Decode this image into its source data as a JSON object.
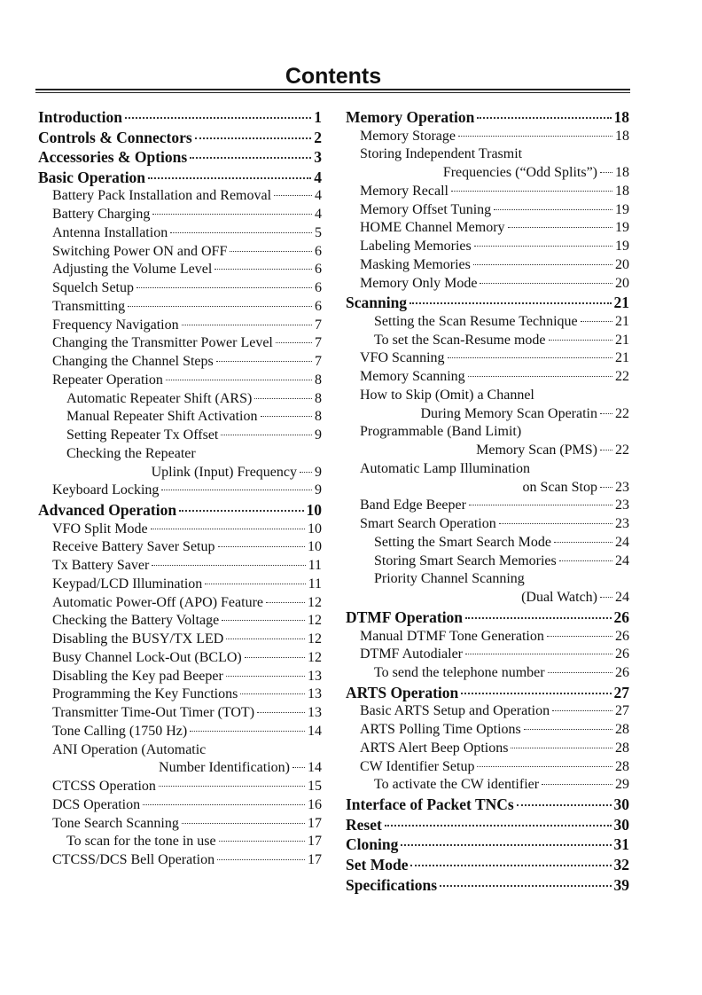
{
  "title": "Contents",
  "left": [
    {
      "text": "Introduction",
      "page": "1",
      "level": 0
    },
    {
      "text": "Controls & Connectors",
      "page": "2",
      "level": 0
    },
    {
      "text": "Accessories & Options",
      "page": "3",
      "level": 0
    },
    {
      "text": "Basic Operation",
      "page": "4",
      "level": 0
    },
    {
      "text": "Battery Pack Installation and Removal",
      "page": "4",
      "level": 1
    },
    {
      "text": "Battery Charging",
      "page": "4",
      "level": 1
    },
    {
      "text": "Antenna Installation",
      "page": "5",
      "level": 1
    },
    {
      "text": "Switching Power ON and OFF",
      "page": "6",
      "level": 1
    },
    {
      "text": "Adjusting the Volume Level",
      "page": "6",
      "level": 1
    },
    {
      "text": "Squelch Setup",
      "page": "6",
      "level": 1
    },
    {
      "text": "Transmitting",
      "page": "6",
      "level": 1
    },
    {
      "text": "Frequency Navigation",
      "page": "7",
      "level": 1
    },
    {
      "text": "Changing the Transmitter Power Level",
      "page": "7",
      "level": 1
    },
    {
      "text": "Changing the Channel Steps",
      "page": "7",
      "level": 1
    },
    {
      "text": "Repeater Operation",
      "page": "8",
      "level": 1
    },
    {
      "text": "Automatic Repeater Shift (ARS)",
      "page": "8",
      "level": 2
    },
    {
      "text": "Manual Repeater Shift Activation",
      "page": "8",
      "level": 2
    },
    {
      "text": "Setting Repeater Tx Offset",
      "page": "9",
      "level": 2
    },
    {
      "text": "Checking the Repeater",
      "cont": "Uplink (Input) Frequency",
      "page": "9",
      "level": 2
    },
    {
      "text": "Keyboard Locking",
      "page": "9",
      "level": 1
    },
    {
      "text": "Advanced Operation",
      "page": "10",
      "level": 0
    },
    {
      "text": "VFO Split Mode",
      "page": "10",
      "level": 1
    },
    {
      "text": "Receive Battery Saver Setup",
      "page": "10",
      "level": 1
    },
    {
      "text": "Tx Battery Saver",
      "page": "11",
      "level": 1
    },
    {
      "text": "Keypad/LCD Illumination",
      "page": "11",
      "level": 1
    },
    {
      "text": "Automatic Power-Off (APO) Feature",
      "page": "12",
      "level": 1
    },
    {
      "text": "Checking the Battery Voltage",
      "page": "12",
      "level": 1
    },
    {
      "text": "Disabling the BUSY/TX LED",
      "page": "12",
      "level": 1
    },
    {
      "text": "Busy Channel Lock-Out (BCLO)",
      "page": "12",
      "level": 1
    },
    {
      "text": "Disabling the Key pad Beeper",
      "page": "13",
      "level": 1
    },
    {
      "text": "Programming the Key Functions",
      "page": "13",
      "level": 1
    },
    {
      "text": "Transmitter Time-Out Timer (TOT)",
      "page": "13",
      "level": 1
    },
    {
      "text": "Tone Calling (1750 Hz)",
      "page": "14",
      "level": 1
    },
    {
      "text": "ANI Operation (Automatic",
      "cont": "Number Identification)",
      "page": "14",
      "level": 1
    },
    {
      "text": "CTCSS Operation",
      "page": "15",
      "level": 1
    },
    {
      "text": "DCS Operation",
      "page": "16",
      "level": 1
    },
    {
      "text": "Tone Search Scanning",
      "page": "17",
      "level": 1
    },
    {
      "text": "To scan for the tone in use",
      "page": "17",
      "level": 2
    },
    {
      "text": "CTCSS/DCS Bell Operation",
      "page": "17",
      "level": 1
    }
  ],
  "right": [
    {
      "text": "Memory Operation",
      "page": "18",
      "level": 0
    },
    {
      "text": "Memory Storage",
      "page": "18",
      "level": 1
    },
    {
      "text": "Storing Independent Trasmit",
      "cont": "Frequencies (“Odd Splits”)",
      "page": "18",
      "level": 1
    },
    {
      "text": "Memory Recall",
      "page": "18",
      "level": 1
    },
    {
      "text": "Memory Offset Tuning",
      "page": "19",
      "level": 1
    },
    {
      "text": "HOME Channel Memory",
      "page": "19",
      "level": 1
    },
    {
      "text": "Labeling Memories",
      "page": "19",
      "level": 1
    },
    {
      "text": "Masking Memories",
      "page": "20",
      "level": 1
    },
    {
      "text": "Memory Only Mode",
      "page": "20",
      "level": 1
    },
    {
      "text": "Scanning",
      "page": "21",
      "level": 0
    },
    {
      "text": "Setting the Scan Resume Technique",
      "page": "21",
      "level": 2
    },
    {
      "text": "To set the Scan-Resume mode",
      "page": "21",
      "level": 2
    },
    {
      "text": "VFO Scanning",
      "page": "21",
      "level": 1
    },
    {
      "text": "Memory Scanning",
      "page": "22",
      "level": 1
    },
    {
      "text": "How to Skip (Omit) a Channel",
      "cont": "During Memory Scan Operatin",
      "page": "22",
      "level": 1
    },
    {
      "text": "Programmable (Band Limit)",
      "cont": "Memory Scan (PMS)",
      "page": "22",
      "level": 1
    },
    {
      "text": "Automatic Lamp Illumination",
      "cont": "on Scan Stop",
      "page": "23",
      "level": 1
    },
    {
      "text": "Band Edge Beeper",
      "page": "23",
      "level": 1
    },
    {
      "text": "Smart Search Operation",
      "page": "23",
      "level": 1
    },
    {
      "text": "Setting the Smart Search Mode",
      "page": "24",
      "level": 2
    },
    {
      "text": "Storing Smart Search Memories",
      "page": "24",
      "level": 2
    },
    {
      "text": "Priority Channel Scanning",
      "cont": "(Dual Watch)",
      "page": "24",
      "level": 2
    },
    {
      "text": "DTMF Operation",
      "page": "26",
      "level": 0
    },
    {
      "text": "Manual DTMF Tone Generation",
      "page": "26",
      "level": 1
    },
    {
      "text": "DTMF Autodialer",
      "page": "26",
      "level": 1
    },
    {
      "text": "To send the telephone number",
      "page": "26",
      "level": 2
    },
    {
      "text": "ARTS Operation",
      "page": "27",
      "level": 0
    },
    {
      "text": "Basic ARTS Setup and Operation",
      "page": "27",
      "level": 1
    },
    {
      "text": "ARTS Polling Time Options",
      "page": "28",
      "level": 1
    },
    {
      "text": "ARTS Alert Beep Options",
      "page": "28",
      "level": 1
    },
    {
      "text": "CW Identifier Setup",
      "page": "28",
      "level": 1
    },
    {
      "text": "To activate the CW identifier",
      "page": "29",
      "level": 2
    },
    {
      "text": "Interface of Packet TNCs",
      "page": "30",
      "level": 0
    },
    {
      "text": "Reset",
      "page": "30",
      "level": 0
    },
    {
      "text": "Cloning",
      "page": "31",
      "level": 0
    },
    {
      "text": "Set Mode",
      "page": "32",
      "level": 0
    },
    {
      "text": "Specifications",
      "page": "39",
      "level": 0
    }
  ]
}
